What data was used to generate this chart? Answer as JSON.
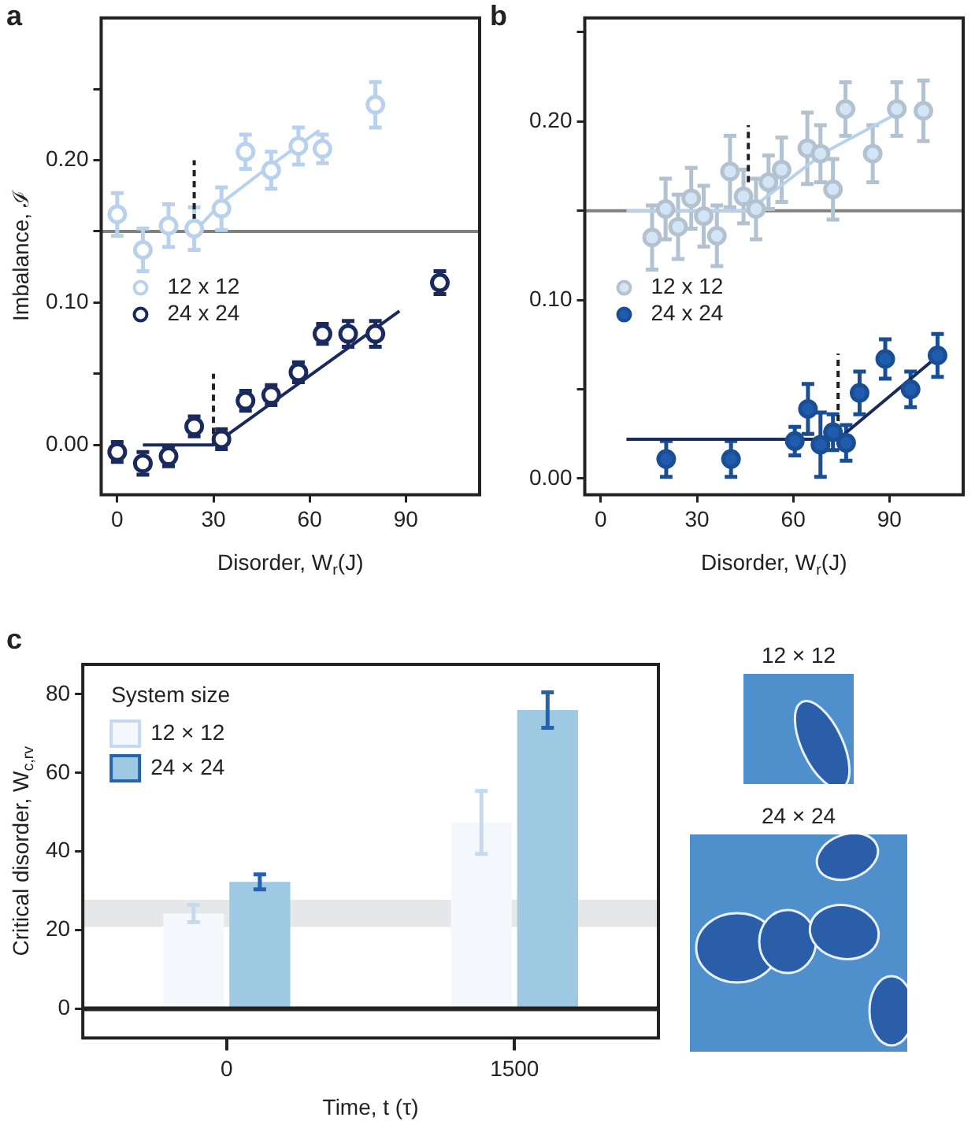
{
  "chart_data": [
    {
      "type": "scatter",
      "title": "a",
      "xlabel": "Disorder, W$_{r}$(J)",
      "ylabel": "Imbalance, ℐ",
      "xlim": [
        -5,
        113
      ],
      "xticks": [
        0,
        30,
        60,
        90
      ],
      "ylim": [
        -0.035,
        0.3
      ],
      "yticks": [
        {
          "value": 0,
          "label": "0.00"
        },
        {
          "value": 0.05,
          "label": null
        },
        {
          "value": 0.1,
          "label": "0.10"
        },
        {
          "value": 0.15,
          "label": null
        },
        {
          "value": 0.2,
          "label": "0.20"
        },
        {
          "value": 0.25,
          "label": null
        }
      ],
      "grid": false,
      "legend": "left",
      "ref_lines": [
        {
          "axis": "y",
          "value": 0.15,
          "color": "#808080"
        }
      ],
      "series": [
        {
          "name": "12 x 12",
          "marker": "circle",
          "color": "#b8d2ee",
          "x": [
            0,
            8,
            16,
            24,
            32.5,
            40,
            48,
            56.5,
            64,
            80.5
          ],
          "values": [
            0.162,
            0.137,
            0.154,
            0.152,
            0.166,
            0.206,
            0.193,
            0.21,
            0.208,
            0.239
          ],
          "errors": [
            0.015,
            0.015,
            0.015,
            0.015,
            0.015,
            0.012,
            0.013,
            0.013,
            0.01,
            0.016
          ]
        },
        {
          "name": "24 x 24",
          "marker": "circle",
          "color": "#1b2a5c",
          "x": [
            0,
            8,
            16,
            24,
            32.5,
            40,
            48,
            56.5,
            64,
            72,
            80.5,
            100.6
          ],
          "values": [
            -0.005,
            -0.013,
            -0.008,
            0.013,
            0.004,
            0.031,
            0.035,
            0.051,
            0.078,
            0.078,
            0.078,
            0.114
          ],
          "errors": [
            0.007,
            0.008,
            0.007,
            0.007,
            0.007,
            0.007,
            0.007,
            0.007,
            0.007,
            0.009,
            0.009,
            0.008
          ]
        },
        {
          "type": "line",
          "color": "#b8d2ee",
          "x": [
            25,
            32.5,
            47,
            63
          ],
          "values": [
            0.152,
            0.17,
            0.195,
            0.221
          ]
        },
        {
          "type": "line",
          "color": "#1b2a5c",
          "x": [
            8,
            30,
            88
          ],
          "values": [
            0,
            0,
            0.094
          ]
        },
        {
          "type": "line",
          "color": "#222222",
          "line_style": "dashed",
          "x": [
            24,
            24
          ],
          "values": [
            0.15,
            0.2
          ]
        },
        {
          "type": "line",
          "color": "#222222",
          "line_style": "dashed",
          "x": [
            30,
            30
          ],
          "values": [
            0,
            0.05
          ]
        }
      ]
    },
    {
      "type": "scatter",
      "title": "b",
      "xlabel": "Disorder, W$_{r}$(J)",
      "xlim": [
        -5,
        113
      ],
      "xticks": [
        0,
        30,
        60,
        90
      ],
      "ylim": [
        -0.009,
        0.258
      ],
      "yticks": [
        {
          "value": 0,
          "label": "0.00"
        },
        {
          "value": 0.05,
          "label": null
        },
        {
          "value": 0.1,
          "label": "0.10"
        },
        {
          "value": 0.15,
          "label": null
        },
        {
          "value": 0.2,
          "label": "0.20"
        },
        {
          "value": 0.25,
          "label": null
        }
      ],
      "grid": false,
      "legend": "left",
      "ref_lines": [
        {
          "axis": "y",
          "value": 0.15,
          "color": "#808080"
        }
      ],
      "series": [
        {
          "name": "12 x 12",
          "marker": "circle",
          "color": "#d3e4f5",
          "x": [
            16,
            20.2,
            24.1,
            28.2,
            32.1,
            36.2,
            40.3,
            44.5,
            48.4,
            52.3,
            56.4,
            64.4,
            68.5,
            72.4,
            76.3,
            84.8,
            92.3,
            100.6
          ],
          "values": [
            0.135,
            0.151,
            0.141,
            0.157,
            0.147,
            0.136,
            0.172,
            0.158,
            0.151,
            0.166,
            0.173,
            0.185,
            0.182,
            0.162,
            0.207,
            0.182,
            0.207,
            0.206
          ],
          "errors": [
            0.018,
            0.017,
            0.018,
            0.017,
            0.017,
            0.017,
            0.02,
            0.015,
            0.017,
            0.015,
            0.018,
            0.02,
            0.016,
            0.017,
            0.015,
            0.016,
            0.015,
            0.017
          ]
        },
        {
          "name": "24 x 24",
          "marker": "circle",
          "color": "#1f5cae",
          "x": [
            20.4,
            40.6,
            60.5,
            64.6,
            68.5,
            72.4,
            76.5,
            80.7,
            88.7,
            96.6,
            105
          ],
          "values": [
            0.011,
            0.011,
            0.021,
            0.039,
            0.019,
            0.026,
            0.02,
            0.048,
            0.067,
            0.05,
            0.069
          ],
          "errors": [
            0.01,
            0.01,
            0.008,
            0.014,
            0.018,
            0.01,
            0.01,
            0.012,
            0.011,
            0.01,
            0.012
          ]
        },
        {
          "type": "line",
          "color": "#b8d2ee",
          "x": [
            8,
            46,
            70,
            95
          ],
          "values": [
            0.15,
            0.15,
            0.183,
            0.207
          ]
        },
        {
          "type": "line",
          "color": "#1b2a5c",
          "x": [
            8,
            74,
            106
          ],
          "values": [
            0.022,
            0.022,
            0.07
          ]
        },
        {
          "type": "line",
          "color": "#222222",
          "line_style": "dashed",
          "x": [
            46,
            46
          ],
          "values": [
            0.166,
            0.198
          ]
        },
        {
          "type": "line",
          "color": "#222222",
          "line_style": "dashed",
          "x": [
            74,
            74
          ],
          "values": [
            0.026,
            0.07
          ]
        }
      ]
    },
    {
      "type": "bar",
      "title": "c",
      "xlabel": "Time, t (τ)",
      "ylabel": "Critical disorder, W$_{c,rv}$",
      "legend_title": "System size",
      "legend": "top left",
      "grid": false,
      "categories": [
        "0",
        "1500"
      ],
      "ylim": [
        -7.4,
        87.6
      ],
      "yticks": [
        0,
        20,
        40,
        60,
        80
      ],
      "bands": [
        {
          "axis": "y",
          "from": 20.8,
          "to": 27.7,
          "color": "#e6e7e9"
        }
      ],
      "ref_lines": [
        {
          "axis": "y",
          "value": 0,
          "color": "#222222"
        }
      ],
      "annotations": [
        "12 × 12",
        "24 × 24"
      ],
      "series": [
        {
          "name": "12 × 12",
          "color": "#f4f8fd",
          "values": [
            24.2,
            47.4
          ],
          "errors": [
            2.2,
            8
          ]
        },
        {
          "name": "24 × 24",
          "color": "#9ec9e2",
          "values": [
            32.3,
            76
          ],
          "errors": [
            1.9,
            4.5
          ]
        }
      ]
    }
  ]
}
